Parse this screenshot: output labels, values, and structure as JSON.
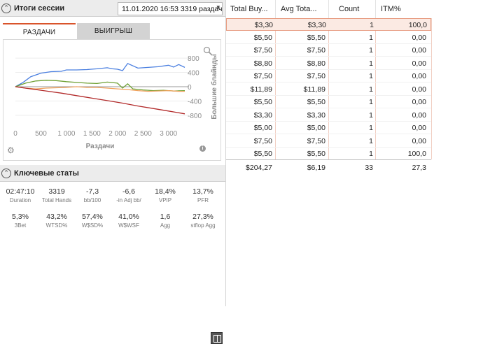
{
  "session": {
    "title": "Итоги сессии",
    "selector": "11.01.2020 16:53 3319 раздач)",
    "tabs": [
      "РАЗДАЧИ",
      "ВЫИГРЫШ"
    ]
  },
  "chart_data": {
    "type": "line",
    "title": "",
    "xlabel": "Раздачи",
    "ylabel": "Большие блайнды",
    "x_ticks": [
      "0",
      "500",
      "1 000",
      "1 500",
      "2 000",
      "2 500",
      "3 000"
    ],
    "y_ticks": [
      "800",
      "400",
      "0",
      "-400",
      "-800"
    ],
    "xlim": [
      0,
      3319
    ],
    "ylim": [
      -900,
      900
    ],
    "series": [
      {
        "color": "#4a7fe0",
        "values": [
          [
            0,
            0
          ],
          [
            150,
            120
          ],
          [
            300,
            280
          ],
          [
            500,
            380
          ],
          [
            700,
            420
          ],
          [
            900,
            430
          ],
          [
            1000,
            470
          ],
          [
            1200,
            470
          ],
          [
            1400,
            480
          ],
          [
            1600,
            500
          ],
          [
            1800,
            530
          ],
          [
            1900,
            500
          ],
          [
            2000,
            490
          ],
          [
            2100,
            450
          ],
          [
            2200,
            650
          ],
          [
            2400,
            520
          ],
          [
            2600,
            540
          ],
          [
            2800,
            560
          ],
          [
            3000,
            600
          ],
          [
            3100,
            550
          ],
          [
            3200,
            620
          ],
          [
            3319,
            540
          ]
        ]
      },
      {
        "color": "#6ea034",
        "values": [
          [
            0,
            0
          ],
          [
            200,
            100
          ],
          [
            400,
            160
          ],
          [
            600,
            180
          ],
          [
            800,
            170
          ],
          [
            1000,
            140
          ],
          [
            1200,
            120
          ],
          [
            1400,
            100
          ],
          [
            1600,
            90
          ],
          [
            1800,
            130
          ],
          [
            2000,
            100
          ],
          [
            2100,
            -40
          ],
          [
            2200,
            80
          ],
          [
            2300,
            -60
          ],
          [
            2500,
            -90
          ],
          [
            2700,
            -110
          ],
          [
            2900,
            -100
          ],
          [
            3100,
            -120
          ],
          [
            3319,
            -110
          ]
        ]
      },
      {
        "color": "#f0a05a",
        "values": [
          [
            0,
            0
          ],
          [
            200,
            -40
          ],
          [
            400,
            -60
          ],
          [
            600,
            -40
          ],
          [
            800,
            -30
          ],
          [
            1000,
            -20
          ],
          [
            1200,
            0
          ],
          [
            1400,
            -20
          ],
          [
            1600,
            -20
          ],
          [
            1800,
            -40
          ],
          [
            2000,
            -60
          ],
          [
            2200,
            -80
          ],
          [
            2400,
            -110
          ],
          [
            2600,
            -130
          ],
          [
            2800,
            -120
          ],
          [
            3000,
            -110
          ],
          [
            3200,
            -130
          ],
          [
            3319,
            -130
          ]
        ]
      },
      {
        "color": "#b22a2a",
        "values": [
          [
            0,
            0
          ],
          [
            300,
            -60
          ],
          [
            600,
            -120
          ],
          [
            900,
            -180
          ],
          [
            1200,
            -250
          ],
          [
            1500,
            -320
          ],
          [
            1800,
            -390
          ],
          [
            2100,
            -460
          ],
          [
            2400,
            -540
          ],
          [
            2700,
            -610
          ],
          [
            3000,
            -680
          ],
          [
            3319,
            -760
          ]
        ]
      }
    ]
  },
  "key_stats": {
    "title": "Ключевые статы",
    "row1": [
      {
        "value": "02:47:10",
        "label": "Duration"
      },
      {
        "value": "3319",
        "label": "Total Hands"
      },
      {
        "value": "-7,3",
        "label": "bb/100"
      },
      {
        "value": "-6,6",
        "label": "-in Adj bb/"
      },
      {
        "value": "18,4%",
        "label": "VPIP"
      },
      {
        "value": "13,7%",
        "label": "PFR"
      }
    ],
    "row2": [
      {
        "value": "5,3%",
        "label": "3Bet"
      },
      {
        "value": "43,2%",
        "label": "WTSD%"
      },
      {
        "value": "57,4%",
        "label": "W$SD%"
      },
      {
        "value": "41,0%",
        "label": "W$WSF"
      },
      {
        "value": "1,6",
        "label": "Agg"
      },
      {
        "value": "27,3%",
        "label": "stflop Agg"
      }
    ]
  },
  "table": {
    "headers": [
      "Total Buy...",
      "Avg Tota...",
      "Count",
      "ITM%"
    ],
    "rows": [
      [
        "$3,30",
        "$3,30",
        "1",
        "100,0"
      ],
      [
        "$5,50",
        "$5,50",
        "1",
        "0,00"
      ],
      [
        "$7,50",
        "$7,50",
        "1",
        "0,00"
      ],
      [
        "$8,80",
        "$8,80",
        "1",
        "0,00"
      ],
      [
        "$7,50",
        "$7,50",
        "1",
        "0,00"
      ],
      [
        "$11,89",
        "$11,89",
        "1",
        "0,00"
      ],
      [
        "$5,50",
        "$5,50",
        "1",
        "0,00"
      ],
      [
        "$3,30",
        "$3,30",
        "1",
        "0,00"
      ],
      [
        "$5,00",
        "$5,00",
        "1",
        "0,00"
      ],
      [
        "$7,50",
        "$7,50",
        "1",
        "0,00"
      ],
      [
        "$5,50",
        "$5,50",
        "1",
        "100,0"
      ]
    ],
    "totals": [
      "$204,27",
      "$6,19",
      "33",
      "27,3"
    ]
  }
}
